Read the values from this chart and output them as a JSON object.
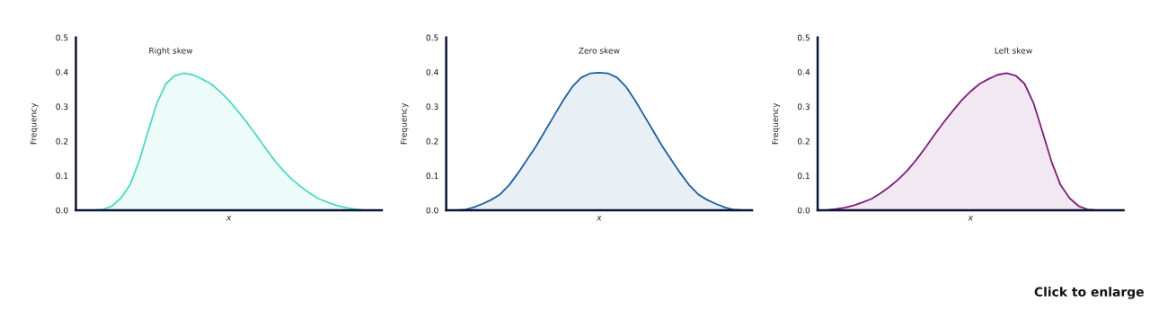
{
  "chart_data": [
    {
      "type": "area",
      "title": "Right skew",
      "xlabel": "x",
      "ylabel": "Frequency",
      "categories": [
        null,
        null,
        null,
        null,
        null,
        null,
        null,
        null,
        null,
        null,
        null,
        null,
        null,
        null,
        null,
        null,
        null,
        null,
        null,
        null,
        null,
        null,
        null,
        null,
        null,
        null,
        null,
        null,
        null,
        null,
        null,
        null,
        null,
        null,
        null
      ],
      "series": [
        {
          "color": "#4fd8c4",
          "values": [
            0,
            0,
            0,
            0.002,
            0.012,
            0.035,
            0.073,
            0.14,
            0.226,
            0.31,
            0.366,
            0.39,
            0.397,
            0.392,
            0.38,
            0.366,
            0.344,
            0.318,
            0.287,
            0.254,
            0.219,
            0.182,
            0.147,
            0.116,
            0.09,
            0.068,
            0.049,
            0.033,
            0.023,
            0.014,
            0.007,
            0.003,
            0,
            0,
            0
          ]
        }
      ],
      "ylim": [
        0,
        0.5
      ],
      "yticks": [
        {
          "value": 0,
          "label": "0.0"
        },
        {
          "value": 0.1,
          "label": "0.1"
        },
        {
          "value": 0.2,
          "label": "0.2"
        },
        {
          "value": 0.3,
          "label": "0.3"
        },
        {
          "value": 0.4,
          "label": "0.4"
        },
        {
          "value": 0.5,
          "label": "0.5"
        }
      ],
      "grid": false,
      "legend": false,
      "tick_labels": "y"
    },
    {
      "type": "area",
      "title": "Zero skew",
      "xlabel": "x",
      "ylabel": "Frequency",
      "categories": [
        null,
        null,
        null,
        null,
        null,
        null,
        null,
        null,
        null,
        null,
        null,
        null,
        null,
        null,
        null,
        null,
        null,
        null,
        null,
        null,
        null,
        null,
        null,
        null,
        null,
        null,
        null,
        null,
        null,
        null,
        null,
        null,
        null,
        null,
        null
      ],
      "series": [
        {
          "color": "#1d5fa0",
          "values": [
            0,
            0,
            0.001,
            0.008,
            0.018,
            0.03,
            0.046,
            0.073,
            0.108,
            0.147,
            0.186,
            0.23,
            0.274,
            0.318,
            0.357,
            0.384,
            0.396,
            0.398,
            0.396,
            0.384,
            0.357,
            0.318,
            0.274,
            0.23,
            0.186,
            0.147,
            0.108,
            0.073,
            0.046,
            0.03,
            0.018,
            0.008,
            0.001,
            0,
            0
          ]
        }
      ],
      "ylim": [
        0,
        0.5
      ],
      "yticks": [
        {
          "value": 0,
          "label": "0.0"
        },
        {
          "value": 0.1,
          "label": "0.1"
        },
        {
          "value": 0.2,
          "label": "0.2"
        },
        {
          "value": 0.3,
          "label": "0.3"
        },
        {
          "value": 0.4,
          "label": "0.4"
        },
        {
          "value": 0.5,
          "label": "0.5"
        }
      ],
      "grid": false,
      "legend": false,
      "tick_labels": "y"
    },
    {
      "type": "area",
      "title": "Left skew",
      "xlabel": "x",
      "ylabel": "Frequency",
      "categories": [
        null,
        null,
        null,
        null,
        null,
        null,
        null,
        null,
        null,
        null,
        null,
        null,
        null,
        null,
        null,
        null,
        null,
        null,
        null,
        null,
        null,
        null,
        null,
        null,
        null,
        null,
        null,
        null,
        null,
        null,
        null,
        null,
        null,
        null,
        null
      ],
      "series": [
        {
          "color": "#7b1f7a",
          "values": [
            0,
            0,
            0.003,
            0.007,
            0.014,
            0.023,
            0.033,
            0.049,
            0.068,
            0.09,
            0.116,
            0.147,
            0.182,
            0.219,
            0.254,
            0.287,
            0.318,
            0.344,
            0.366,
            0.38,
            0.392,
            0.397,
            0.39,
            0.366,
            0.31,
            0.226,
            0.14,
            0.073,
            0.035,
            0.012,
            0.002,
            0,
            0,
            0,
            0
          ]
        }
      ],
      "ylim": [
        0,
        0.5
      ],
      "yticks": [
        {
          "value": 0,
          "label": "0.0"
        },
        {
          "value": 0.1,
          "label": "0.1"
        },
        {
          "value": 0.2,
          "label": "0.2"
        },
        {
          "value": 0.3,
          "label": "0.3"
        },
        {
          "value": 0.4,
          "label": "0.4"
        },
        {
          "value": 0.5,
          "label": "0.5"
        }
      ],
      "grid": false,
      "legend": false,
      "tick_labels": "y",
      "annotations": [
        "Click to enlarge"
      ]
    }
  ]
}
